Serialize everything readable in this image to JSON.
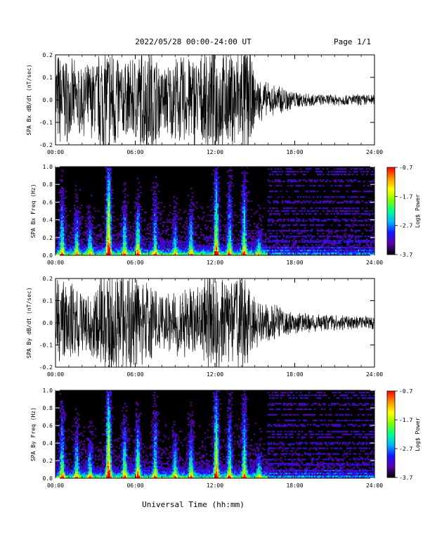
{
  "header": {
    "title": "2022/05/28  00:00-24:00 UT",
    "page": "Page 1/1"
  },
  "footer": {
    "xlabel": "Universal Time (hh:mm)"
  },
  "colors": {
    "trace": "#000000",
    "spectrogram_background": "#000000",
    "colorbar": [
      "#000000",
      "#5a00a8",
      "#1515ff",
      "#00b4ff",
      "#00ff90",
      "#80ff00",
      "#ffff00",
      "#ff9000",
      "#ff0000"
    ]
  },
  "chart_data": [
    {
      "type": "line",
      "id": "bx-time-series",
      "ylabel": "SPA Bx dB/dt (nT/sec)",
      "xlim": [
        0,
        24
      ],
      "ylim": [
        -0.2,
        0.2
      ],
      "xticks": [
        "00:00",
        "06:00",
        "12:00",
        "18:00",
        "24:00"
      ],
      "yticks": [
        "-0.2",
        "-0.1",
        "0.0",
        "0.1",
        "0.2"
      ],
      "series": [
        {
          "x": [
            0,
            1,
            2,
            3,
            3.5,
            4,
            4.5,
            5,
            6,
            7,
            8,
            9,
            10,
            11,
            11.5,
            12,
            13,
            14,
            14.5,
            15,
            16,
            17,
            18,
            19,
            20,
            21,
            22,
            23,
            24
          ],
          "amplitude": [
            0.18,
            0.15,
            0.12,
            0.14,
            0.2,
            0.2,
            0.2,
            0.13,
            0.16,
            0.2,
            0.12,
            0.15,
            0.17,
            0.16,
            0.2,
            0.2,
            0.17,
            0.2,
            0.2,
            0.09,
            0.06,
            0.05,
            0.03,
            0.025,
            0.02,
            0.02,
            0.02,
            0.02,
            0.02
          ]
        }
      ]
    },
    {
      "type": "heatmap",
      "id": "bx-spectrogram",
      "ylabel": "SPA Bx Freq (Hz)",
      "xlim": [
        0,
        24
      ],
      "ylim": [
        0,
        1
      ],
      "xticks": [
        "00:00",
        "06:00",
        "12:00",
        "18:00",
        "24:00"
      ],
      "yticks": [
        "0.0",
        "0.2",
        "0.4",
        "0.6",
        "0.8",
        "1.0"
      ],
      "colorbar": {
        "label": "Log$ Power",
        "ticks": [
          "-0.7",
          "-1.7",
          "-2.7",
          "-3.7"
        ],
        "range": [
          -3.7,
          -0.7
        ]
      },
      "bursts": [
        {
          "t": 0.5,
          "height": 0.7,
          "level": 0.55
        },
        {
          "t": 1.6,
          "height": 0.55,
          "level": 0.45
        },
        {
          "t": 2.6,
          "height": 0.45,
          "level": 0.4
        },
        {
          "t": 4.0,
          "height": 1.0,
          "level": 0.95
        },
        {
          "t": 5.2,
          "height": 0.6,
          "level": 0.5
        },
        {
          "t": 6.2,
          "height": 0.6,
          "level": 0.6
        },
        {
          "t": 7.5,
          "height": 0.7,
          "level": 0.45
        },
        {
          "t": 9.0,
          "height": 0.45,
          "level": 0.4
        },
        {
          "t": 10.2,
          "height": 0.55,
          "level": 0.45
        },
        {
          "t": 12.1,
          "height": 1.0,
          "level": 0.75
        },
        {
          "t": 13.1,
          "height": 0.8,
          "level": 0.5
        },
        {
          "t": 14.2,
          "height": 0.9,
          "level": 0.6
        },
        {
          "t": 15.3,
          "height": 0.3,
          "level": 0.3
        }
      ]
    },
    {
      "type": "line",
      "id": "by-time-series",
      "ylabel": "SPA By dB/dt (nT/sec)",
      "xlim": [
        0,
        24
      ],
      "ylim": [
        -0.2,
        0.2
      ],
      "xticks": [
        "00:00",
        "06:00",
        "12:00",
        "18:00",
        "24:00"
      ],
      "yticks": [
        "-0.2",
        "-0.1",
        "0.0",
        "0.1",
        "0.2"
      ],
      "series": [
        {
          "x": [
            0,
            1,
            2,
            3,
            3.5,
            4,
            4.5,
            5,
            6,
            7,
            8,
            9,
            10,
            11,
            11.5,
            12,
            13,
            14,
            14.5,
            15,
            16,
            17,
            18,
            19,
            20,
            21,
            22,
            23,
            24
          ],
          "amplitude": [
            0.17,
            0.16,
            0.12,
            0.12,
            0.2,
            0.2,
            0.2,
            0.2,
            0.18,
            0.14,
            0.1,
            0.12,
            0.13,
            0.14,
            0.2,
            0.2,
            0.17,
            0.2,
            0.15,
            0.1,
            0.07,
            0.06,
            0.04,
            0.035,
            0.03,
            0.03,
            0.025,
            0.025,
            0.025
          ]
        }
      ]
    },
    {
      "type": "heatmap",
      "id": "by-spectrogram",
      "ylabel": "SPA By Freq (Hz)",
      "xlim": [
        0,
        24
      ],
      "ylim": [
        0,
        1
      ],
      "xticks": [
        "00:00",
        "06:00",
        "12:00",
        "18:00",
        "24:00"
      ],
      "yticks": [
        "0.0",
        "0.2",
        "0.4",
        "0.6",
        "0.8",
        "1.0"
      ],
      "colorbar": {
        "label": "Log$ Power",
        "ticks": [
          "-0.7",
          "-1.7",
          "-2.7",
          "-3.7"
        ],
        "range": [
          -3.7,
          -0.7
        ]
      },
      "bursts": [
        {
          "t": 0.5,
          "height": 0.8,
          "level": 0.55
        },
        {
          "t": 1.6,
          "height": 0.6,
          "level": 0.45
        },
        {
          "t": 2.6,
          "height": 0.5,
          "level": 0.4
        },
        {
          "t": 4.0,
          "height": 1.0,
          "level": 0.95
        },
        {
          "t": 5.2,
          "height": 0.65,
          "level": 0.55
        },
        {
          "t": 6.2,
          "height": 0.65,
          "level": 0.65
        },
        {
          "t": 7.5,
          "height": 0.75,
          "level": 0.5
        },
        {
          "t": 9.0,
          "height": 0.5,
          "level": 0.45
        },
        {
          "t": 10.2,
          "height": 0.6,
          "level": 0.5
        },
        {
          "t": 12.1,
          "height": 1.0,
          "level": 0.8
        },
        {
          "t": 13.1,
          "height": 0.8,
          "level": 0.5
        },
        {
          "t": 14.2,
          "height": 0.9,
          "level": 0.6
        },
        {
          "t": 15.3,
          "height": 0.35,
          "level": 0.35
        }
      ]
    }
  ]
}
